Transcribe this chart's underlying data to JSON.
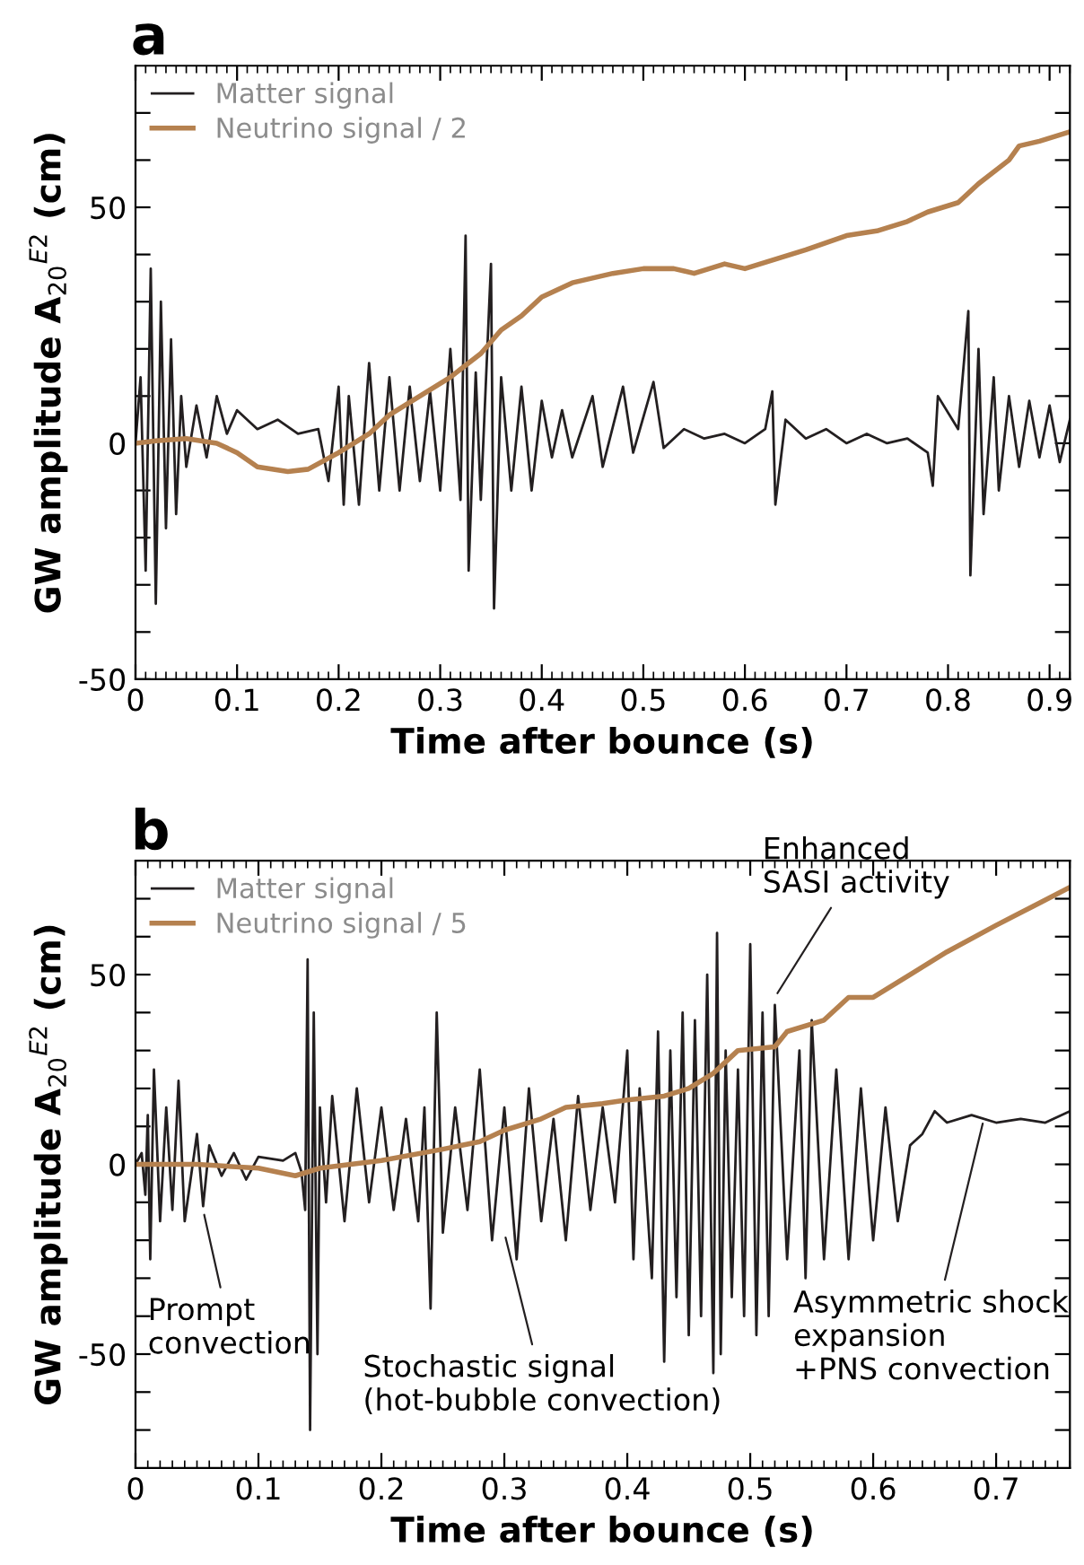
{
  "chart_data": [
    {
      "type": "line",
      "title": "a",
      "xlabel": "Time after bounce (s)",
      "ylabel": "GW amplitude A$_{20}$$^{E2}$ (cm)",
      "xlim": [
        0,
        0.92
      ],
      "ylim": [
        -50,
        80
      ],
      "xticks": [
        0,
        0.1,
        0.2,
        0.3,
        0.4,
        0.5,
        0.6,
        0.7,
        0.8,
        0.9
      ],
      "yticks": [
        -50,
        {
          "value": -40,
          "label": null
        },
        {
          "value": -30,
          "label": null
        },
        {
          "value": -20,
          "label": null
        },
        {
          "value": -10,
          "label": null
        },
        0,
        {
          "value": 10,
          "label": null
        },
        {
          "value": 20,
          "label": null
        },
        {
          "value": 30,
          "label": null
        },
        {
          "value": 40,
          "label": null
        },
        50,
        {
          "value": 60,
          "label": null
        },
        {
          "value": 70,
          "label": null
        }
      ],
      "legend": "top left",
      "grid": false,
      "series": [
        {
          "name": "Matter signal",
          "color": "#231f20",
          "x": [
            0,
            0.005,
            0.01,
            0.015,
            0.02,
            0.025,
            0.03,
            0.035,
            0.04,
            0.045,
            0.05,
            0.06,
            0.07,
            0.08,
            0.09,
            0.1,
            0.12,
            0.14,
            0.16,
            0.18,
            0.19,
            0.2,
            0.205,
            0.21,
            0.22,
            0.23,
            0.24,
            0.25,
            0.26,
            0.27,
            0.28,
            0.29,
            0.3,
            0.31,
            0.32,
            0.325,
            0.328,
            0.335,
            0.34,
            0.35,
            0.353,
            0.36,
            0.37,
            0.38,
            0.39,
            0.4,
            0.41,
            0.42,
            0.43,
            0.45,
            0.46,
            0.48,
            0.49,
            0.51,
            0.52,
            0.54,
            0.56,
            0.58,
            0.6,
            0.62,
            0.627,
            0.63,
            0.64,
            0.66,
            0.68,
            0.7,
            0.72,
            0.74,
            0.76,
            0.78,
            0.785,
            0.79,
            0.81,
            0.82,
            0.822,
            0.83,
            0.835,
            0.845,
            0.85,
            0.86,
            0.87,
            0.88,
            0.89,
            0.9,
            0.91,
            0.92
          ],
          "values": [
            0,
            14,
            -27,
            37,
            -34,
            30,
            -18,
            22,
            -15,
            10,
            -5,
            8,
            -3,
            10,
            2,
            7,
            3,
            5,
            2,
            3,
            -8,
            12,
            -13,
            10,
            -13,
            17,
            -10,
            14,
            -10,
            12,
            -8,
            11,
            -10,
            20,
            -12,
            44,
            -27,
            15,
            -12,
            38,
            -35,
            14,
            -10,
            12,
            -10,
            9,
            -3,
            7,
            -3,
            10,
            -5,
            12,
            -2,
            13,
            -1,
            3,
            1,
            2,
            0,
            3,
            11,
            -13,
            5,
            1,
            3,
            0,
            2,
            0,
            1,
            -2,
            -9,
            10,
            3,
            28,
            -28,
            20,
            -15,
            14,
            -10,
            10,
            -5,
            9,
            -3,
            8,
            -4,
            5
          ]
        },
        {
          "name": "Neutrino signal / 2",
          "color": "#b5814f",
          "x": [
            0,
            0.02,
            0.05,
            0.08,
            0.1,
            0.12,
            0.15,
            0.17,
            0.2,
            0.23,
            0.25,
            0.28,
            0.31,
            0.34,
            0.36,
            0.38,
            0.4,
            0.43,
            0.47,
            0.5,
            0.53,
            0.55,
            0.58,
            0.6,
            0.63,
            0.66,
            0.7,
            0.73,
            0.76,
            0.78,
            0.81,
            0.83,
            0.86,
            0.87,
            0.89,
            0.92
          ],
          "values": [
            0,
            0.5,
            1,
            0,
            -2,
            -5,
            -6,
            -5.5,
            -2,
            2,
            6,
            10,
            14,
            19,
            24,
            27,
            31,
            34,
            36,
            37,
            37,
            36,
            38,
            37,
            39,
            41,
            44,
            45,
            47,
            49,
            51,
            55,
            60,
            63,
            64,
            66
          ]
        }
      ]
    },
    {
      "type": "line",
      "title": "b",
      "xlabel": "Time after bounce (s)",
      "ylabel": "GW amplitude A$_{20}$$^{E2}$ (cm)",
      "xlim": [
        0,
        0.76
      ],
      "ylim": [
        -80,
        80
      ],
      "xticks": [
        0,
        0.1,
        0.2,
        0.3,
        0.4,
        0.5,
        0.6,
        0.7
      ],
      "yticks": [
        {
          "value": -70,
          "label": null
        },
        {
          "value": -60,
          "label": null
        },
        -50,
        {
          "value": -40,
          "label": null
        },
        {
          "value": -30,
          "label": null
        },
        {
          "value": -20,
          "label": null
        },
        {
          "value": -10,
          "label": null
        },
        0,
        {
          "value": 10,
          "label": null
        },
        {
          "value": 20,
          "label": null
        },
        {
          "value": 30,
          "label": null
        },
        {
          "value": 40,
          "label": null
        },
        50,
        {
          "value": 60,
          "label": null
        },
        {
          "value": 70,
          "label": null
        }
      ],
      "legend": "top left",
      "grid": false,
      "annotations": [
        {
          "text": "Prompt\nconvection",
          "x": 0.055,
          "y": -12
        },
        {
          "text": "Stochastic signal\n(hot-bubble convection)",
          "x": 0.3,
          "y": -18
        },
        {
          "text": "Enhanced\nSASI activity",
          "x": 0.52,
          "y": 44
        },
        {
          "text": "Asymmetric shock\nexpansion\n+PNS convection",
          "x": 0.69,
          "y": 12
        }
      ],
      "series": [
        {
          "name": "Matter signal",
          "color": "#231f20",
          "x": [
            0,
            0.005,
            0.008,
            0.01,
            0.012,
            0.015,
            0.02,
            0.025,
            0.03,
            0.035,
            0.04,
            0.05,
            0.055,
            0.06,
            0.07,
            0.08,
            0.09,
            0.1,
            0.12,
            0.13,
            0.135,
            0.138,
            0.14,
            0.142,
            0.145,
            0.148,
            0.15,
            0.155,
            0.16,
            0.17,
            0.18,
            0.19,
            0.2,
            0.21,
            0.22,
            0.23,
            0.235,
            0.24,
            0.245,
            0.25,
            0.26,
            0.27,
            0.28,
            0.29,
            0.3,
            0.31,
            0.32,
            0.33,
            0.34,
            0.35,
            0.36,
            0.37,
            0.38,
            0.39,
            0.4,
            0.405,
            0.41,
            0.42,
            0.425,
            0.43,
            0.435,
            0.44,
            0.445,
            0.45,
            0.455,
            0.46,
            0.465,
            0.47,
            0.473,
            0.476,
            0.48,
            0.485,
            0.49,
            0.495,
            0.5,
            0.505,
            0.51,
            0.515,
            0.52,
            0.53,
            0.54,
            0.545,
            0.55,
            0.56,
            0.57,
            0.58,
            0.59,
            0.6,
            0.61,
            0.62,
            0.63,
            0.64,
            0.65,
            0.66,
            0.68,
            0.7,
            0.72,
            0.74,
            0.76
          ],
          "values": [
            0,
            3,
            -8,
            13,
            -25,
            25,
            -15,
            15,
            -12,
            22,
            -15,
            8,
            -11,
            5,
            -3,
            3,
            -4,
            2,
            1,
            3,
            -2,
            -12,
            54,
            -70,
            40,
            -50,
            15,
            -10,
            18,
            -15,
            20,
            -10,
            15,
            -12,
            12,
            -15,
            15,
            -38,
            40,
            -18,
            15,
            -12,
            25,
            -20,
            15,
            -25,
            20,
            -15,
            12,
            -20,
            18,
            -12,
            15,
            -10,
            30,
            -25,
            20,
            -30,
            35,
            -52,
            30,
            -35,
            40,
            -45,
            38,
            -40,
            50,
            -55,
            61,
            -50,
            30,
            -35,
            25,
            -40,
            58,
            -45,
            40,
            -40,
            42,
            -25,
            30,
            -30,
            38,
            -25,
            25,
            -25,
            20,
            -20,
            15,
            -15,
            5,
            8,
            14,
            11,
            13,
            11,
            12,
            11,
            14
          ]
        },
        {
          "name": "Neutrino signal / 5",
          "color": "#b5814f",
          "x": [
            0,
            0.05,
            0.1,
            0.13,
            0.15,
            0.2,
            0.25,
            0.28,
            0.3,
            0.33,
            0.35,
            0.38,
            0.4,
            0.43,
            0.45,
            0.47,
            0.48,
            0.49,
            0.52,
            0.53,
            0.56,
            0.58,
            0.6,
            0.63,
            0.66,
            0.7,
            0.73,
            0.76
          ],
          "values": [
            0,
            0,
            -1,
            -3,
            -1,
            1,
            4,
            6,
            9,
            12,
            15,
            16,
            17,
            18,
            20,
            24,
            27,
            30,
            31,
            35,
            38,
            44,
            44,
            50,
            56,
            63,
            68,
            73
          ]
        }
      ]
    }
  ]
}
